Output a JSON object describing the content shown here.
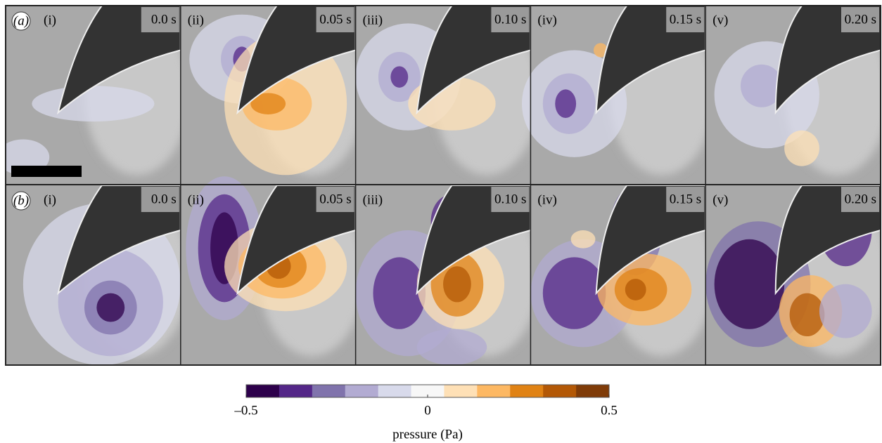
{
  "rows": [
    {
      "label": "(a)",
      "panels": [
        {
          "label": "(i)",
          "time": "0.0 s"
        },
        {
          "label": "(ii)",
          "time": "0.05 s"
        },
        {
          "label": "(iii)",
          "time": "0.10 s"
        },
        {
          "label": "(iv)",
          "time": "0.15 s"
        },
        {
          "label": "(v)",
          "time": "0.20 s"
        }
      ]
    },
    {
      "label": "(b)",
      "panels": [
        {
          "label": "(i)",
          "time": "0.0 s"
        },
        {
          "label": "(ii)",
          "time": "0.05 s"
        },
        {
          "label": "(iii)",
          "time": "0.10 s"
        },
        {
          "label": "(iv)",
          "time": "0.15 s"
        },
        {
          "label": "(v)",
          "time": "0.20 s"
        }
      ]
    }
  ],
  "colorbar": {
    "label": "pressure (Pa)",
    "lim": [
      -0.5,
      0.5
    ],
    "ticks": [
      {
        "value": -0.5,
        "label": "–0.5"
      },
      0,
      0.5
    ],
    "colors": [
      "#2d004b",
      "#542788",
      "#8073ac",
      "#b2abd2",
      "#d8daeb",
      "#f7f7f7",
      "#fee0b6",
      "#fdb863",
      "#e08214",
      "#b35806",
      "#7f3b08"
    ]
  }
}
